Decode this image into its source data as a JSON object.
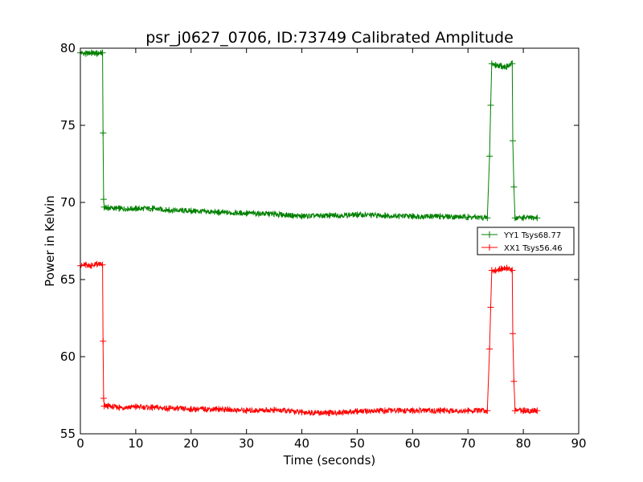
{
  "chart_data": {
    "type": "line",
    "title": "psr_j0627_0706, ID:73749 Calibrated Amplitude",
    "xlabel": "Time (seconds)",
    "ylabel": "Power in Kelvin",
    "xlim": [
      0,
      90
    ],
    "ylim": [
      55,
      80
    ],
    "xticks": [
      0,
      10,
      20,
      30,
      40,
      50,
      60,
      70,
      80,
      90
    ],
    "yticks": [
      55,
      60,
      65,
      70,
      75,
      80
    ],
    "grid": false,
    "legend_position": "right",
    "series": [
      {
        "name": "YY1 Tsys68.77",
        "color": "#008000",
        "marker": "+",
        "x": [
          0,
          1,
          2,
          3,
          4,
          4.1,
          4.2,
          4.3,
          5,
          7,
          10,
          13,
          16,
          20,
          25,
          30,
          35,
          40,
          45,
          50,
          55,
          60,
          65,
          70,
          73.5,
          73.9,
          74.1,
          74.3,
          75,
          76,
          77,
          78,
          78.1,
          78.3,
          78.5,
          80,
          82.5
        ],
        "y": [
          79.7,
          79.65,
          79.7,
          79.65,
          79.7,
          74.5,
          70.2,
          69.7,
          69.65,
          69.6,
          69.6,
          69.6,
          69.5,
          69.45,
          69.35,
          69.3,
          69.25,
          69.1,
          69.15,
          69.2,
          69.15,
          69.1,
          69.1,
          69.05,
          69.0,
          73.0,
          76.3,
          79.0,
          78.9,
          78.85,
          78.8,
          79.0,
          74.0,
          71.0,
          69.0,
          69.0,
          69.0
        ]
      },
      {
        "name": "XX1 Tsys56.46",
        "color": "#ff0000",
        "marker": "+",
        "x": [
          0,
          1,
          2,
          3,
          4,
          4.1,
          4.2,
          4.3,
          5,
          7,
          10,
          13,
          16,
          20,
          25,
          30,
          35,
          40,
          45,
          50,
          55,
          60,
          65,
          70,
          73.5,
          73.9,
          74.1,
          74.3,
          75,
          76,
          77,
          78,
          78.1,
          78.3,
          78.5,
          80,
          82.5
        ],
        "y": [
          65.9,
          65.95,
          65.9,
          66.0,
          65.95,
          61.0,
          57.3,
          56.8,
          56.8,
          56.7,
          56.75,
          56.7,
          56.65,
          56.6,
          56.6,
          56.5,
          56.55,
          56.4,
          56.35,
          56.45,
          56.5,
          56.5,
          56.5,
          56.5,
          56.5,
          60.5,
          63.2,
          65.6,
          65.6,
          65.7,
          65.75,
          65.6,
          61.5,
          58.4,
          56.5,
          56.5,
          56.5
        ]
      }
    ]
  }
}
